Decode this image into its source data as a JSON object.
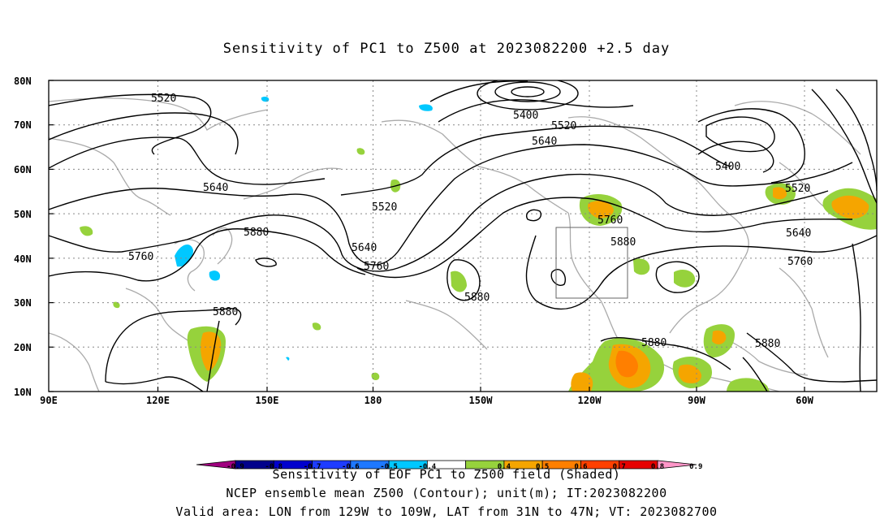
{
  "title": "Sensitivity of PC1 to Z500 at 2023082200 +2.5 day",
  "lon_labels": [
    "90E",
    "120E",
    "150E",
    "180",
    "150W",
    "120W",
    "90W",
    "60W"
  ],
  "lat_labels": [
    "80N",
    "70N",
    "60N",
    "50N",
    "40N",
    "30N",
    "20N",
    "10N"
  ],
  "contour_labels": [
    "5520",
    "5400",
    "5520",
    "5640",
    "5640",
    "5520",
    "5880",
    "5760",
    "5640",
    "5760",
    "5760",
    "5880",
    "5880",
    "5880",
    "5880",
    "5400",
    "5520",
    "5640",
    "5760",
    "5880"
  ],
  "colorbar": {
    "labels": [
      "-0.9",
      "-0.8",
      "-0.7",
      "-0.6",
      "-0.5",
      "-0.4",
      "0.4",
      "0.5",
      "0.6",
      "0.7",
      "0.8",
      "0.9"
    ],
    "colors": [
      "#a0007f",
      "#00008b",
      "#0000cd",
      "#1e3cff",
      "#1e78ff",
      "#00c8ff",
      "#ffffff",
      "#96d23c",
      "#f5a500",
      "#ff7f00",
      "#ff4000",
      "#e60000",
      "#ff96c8"
    ]
  },
  "captions": [
    "Sensitivity of EOF PC1 to Z500 field (Shaded)",
    "NCEP ensemble mean Z500 (Contour); unit(m); IT:2023082200",
    "Valid area: LON from 129W to 109W, LAT from 31N to 47N; VT: 2023082700"
  ]
}
